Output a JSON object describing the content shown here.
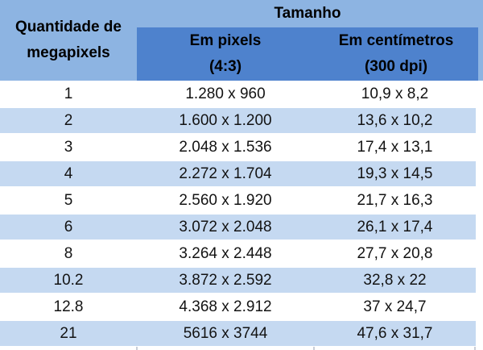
{
  "colors": {
    "header_light_blue": "#8DB4E2",
    "subheader_blue": "#4E82CD",
    "row_stripe_blue": "#C5D9F1"
  },
  "table": {
    "corner_header": {
      "line1": "Quantidade de",
      "line2": "megapixels"
    },
    "group_header": "Tamanho",
    "sub_headers": [
      {
        "line1": "Em pixels",
        "line2": "(4:3)"
      },
      {
        "line1": "Em centímetros",
        "line2": "(300 dpi)"
      }
    ],
    "rows": [
      {
        "megapixels": "1",
        "pixels": "1.280 x 960",
        "centimeters": "10,9 x 8,2"
      },
      {
        "megapixels": "2",
        "pixels": "1.600 x 1.200",
        "centimeters": "13,6 x 10,2"
      },
      {
        "megapixels": "3",
        "pixels": "2.048 x 1.536",
        "centimeters": "17,4 x 13,1"
      },
      {
        "megapixels": "4",
        "pixels": "2.272 x 1.704",
        "centimeters": "19,3 x 14,5"
      },
      {
        "megapixels": "5",
        "pixels": "2.560 x 1.920",
        "centimeters": "21,7 x 16,3"
      },
      {
        "megapixels": "6",
        "pixels": "3.072 x 2.048",
        "centimeters": "26,1 x 17,4"
      },
      {
        "megapixels": "8",
        "pixels": "3.264 x 2.448",
        "centimeters": "27,7 x 20,8"
      },
      {
        "megapixels": "10.2",
        "pixels": "3.872 x 2.592",
        "centimeters": "32,8 x 22"
      },
      {
        "megapixels": "12.8",
        "pixels": "4.368 x 2.912",
        "centimeters": "37 x 24,7"
      },
      {
        "megapixels": "21",
        "pixels": "5616 x 3744",
        "centimeters": "47,6 x 31,7"
      }
    ]
  }
}
